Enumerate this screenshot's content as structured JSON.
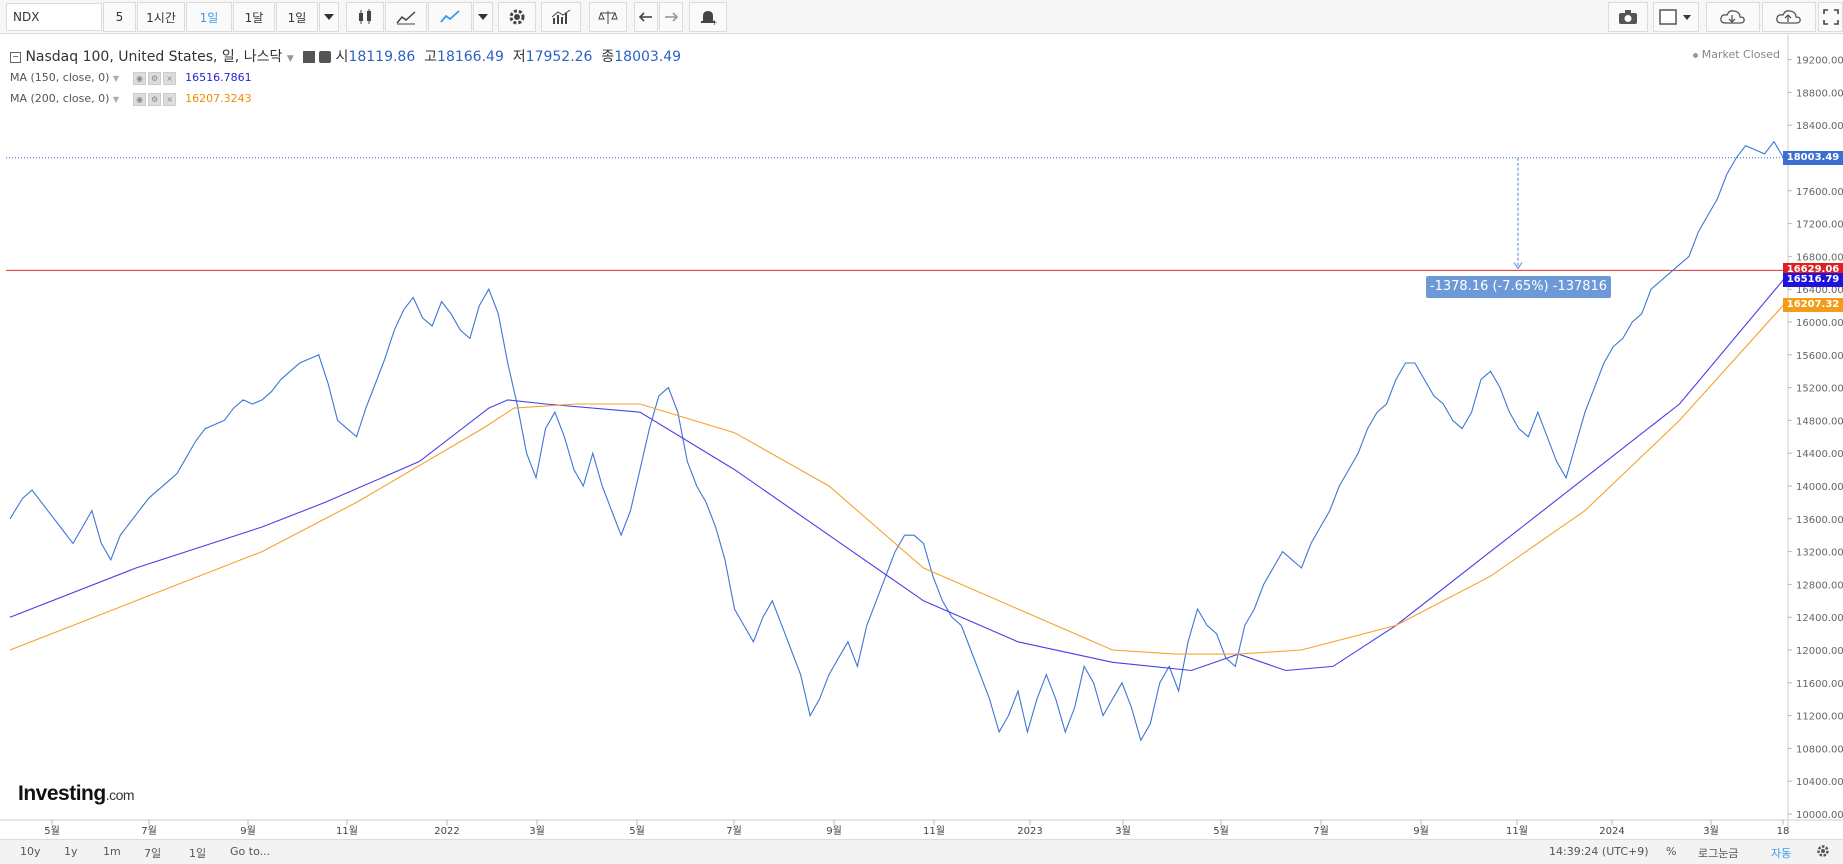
{
  "toolbar": {
    "symbol": "NDX",
    "buttons": [
      "5",
      "1시간",
      "1일",
      "1달",
      "1일"
    ],
    "active_button": "1일"
  },
  "legend": {
    "title": "Nasdaq 100, United States, 일, 나스닥",
    "open_label": "시",
    "open": "18119.86",
    "high_label": "고",
    "high": "18166.49",
    "low_label": "저",
    "low": "17952.26",
    "close_label": "종",
    "close": "18003.49",
    "ma150_label": "MA (150, close, 0)",
    "ma150_value": "16516.7861",
    "ma200_label": "MA (200, close, 0)",
    "ma200_value": "16207.3243",
    "market_status": "Market Closed"
  },
  "price_labels": {
    "last": "18003.49",
    "hline": "16629.06",
    "ma150": "16516.79",
    "ma200": "16207.32"
  },
  "measurement": "-1378.16 (-7.65%) -137816",
  "logo": {
    "main": "Investing",
    "sub": ".com"
  },
  "bottombar": {
    "ranges": [
      "10y",
      "1y",
      "1m",
      "7일",
      "1일",
      "Go to..."
    ],
    "time": "14:39:24 (UTC+9)",
    "percent": "%",
    "log": "로그눈금",
    "auto": "자동"
  },
  "colors": {
    "price": "#3d76d6",
    "ma150": "#4b3ee8",
    "ma200": "#f4a22d",
    "hline": "#e03131",
    "last_box": "#3d6fd3",
    "hline_box": "#e02020",
    "ma150_box": "#1f12dc",
    "ma200_box": "#f39c1a"
  },
  "chart_data": {
    "type": "line",
    "x_tick_labels": [
      "5월",
      "7월",
      "9월",
      "11월",
      "2022",
      "3월",
      "5월",
      "7월",
      "9월",
      "11월",
      "2023",
      "3월",
      "5월",
      "7월",
      "9월",
      "11월",
      "2024",
      "3월",
      "18"
    ],
    "y_tick_labels": [
      "10000.00",
      "10400.00",
      "10800.00",
      "11200.00",
      "11600.00",
      "12000.00",
      "12400.00",
      "12800.00",
      "13200.00",
      "13600.00",
      "14000.00",
      "14400.00",
      "14800.00",
      "15200.00",
      "15600.00",
      "16000.00",
      "16400.00",
      "16800.00",
      "17200.00",
      "17600.00",
      "18000.00",
      "18400.00",
      "18800.00",
      "19200.00"
    ],
    "ylim": [
      10000,
      19300
    ],
    "horizontal_line": 16629.06,
    "last_price": 18003.49,
    "series": [
      {
        "name": "Nasdaq 100",
        "points": [
          [
            0,
            13600
          ],
          [
            4,
            13850
          ],
          [
            7,
            13950
          ],
          [
            10,
            13800
          ],
          [
            13,
            13650
          ],
          [
            16,
            13500
          ],
          [
            20,
            13300
          ],
          [
            23,
            13500
          ],
          [
            26,
            13700
          ],
          [
            29,
            13300
          ],
          [
            32,
            13100
          ],
          [
            35,
            13400
          ],
          [
            38,
            13550
          ],
          [
            41,
            13700
          ],
          [
            44,
            13850
          ],
          [
            47,
            13950
          ],
          [
            50,
            14050
          ],
          [
            53,
            14150
          ],
          [
            56,
            14350
          ],
          [
            59,
            14550
          ],
          [
            62,
            14700
          ],
          [
            65,
            14750
          ],
          [
            68,
            14800
          ],
          [
            71,
            14950
          ],
          [
            74,
            15050
          ],
          [
            77,
            15000
          ],
          [
            80,
            15050
          ],
          [
            83,
            15150
          ],
          [
            86,
            15300
          ],
          [
            89,
            15400
          ],
          [
            92,
            15500
          ],
          [
            95,
            15550
          ],
          [
            98,
            15600
          ],
          [
            101,
            15250
          ],
          [
            104,
            14800
          ],
          [
            107,
            14700
          ],
          [
            110,
            14600
          ],
          [
            113,
            14950
          ],
          [
            116,
            15250
          ],
          [
            119,
            15550
          ],
          [
            122,
            15900
          ],
          [
            125,
            16150
          ],
          [
            128,
            16300
          ],
          [
            131,
            16050
          ],
          [
            134,
            15950
          ],
          [
            137,
            16250
          ],
          [
            140,
            16100
          ],
          [
            143,
            15900
          ],
          [
            146,
            15800
          ],
          [
            149,
            16200
          ],
          [
            152,
            16400
          ],
          [
            155,
            16100
          ],
          [
            158,
            15500
          ],
          [
            161,
            15000
          ],
          [
            164,
            14400
          ],
          [
            167,
            14100
          ],
          [
            170,
            14700
          ],
          [
            173,
            14900
          ],
          [
            176,
            14600
          ],
          [
            179,
            14200
          ],
          [
            182,
            14000
          ],
          [
            185,
            14400
          ],
          [
            188,
            14000
          ],
          [
            191,
            13700
          ],
          [
            194,
            13400
          ],
          [
            197,
            13700
          ],
          [
            200,
            14200
          ],
          [
            203,
            14700
          ],
          [
            206,
            15100
          ],
          [
            209,
            15200
          ],
          [
            212,
            14900
          ],
          [
            215,
            14300
          ],
          [
            218,
            14000
          ],
          [
            221,
            13800
          ],
          [
            224,
            13500
          ],
          [
            227,
            13100
          ],
          [
            230,
            12500
          ],
          [
            233,
            12300
          ],
          [
            236,
            12100
          ],
          [
            239,
            12400
          ],
          [
            242,
            12600
          ],
          [
            245,
            12300
          ],
          [
            248,
            12000
          ],
          [
            251,
            11700
          ],
          [
            254,
            11200
          ],
          [
            257,
            11400
          ],
          [
            260,
            11700
          ],
          [
            263,
            11900
          ],
          [
            266,
            12100
          ],
          [
            269,
            11800
          ],
          [
            272,
            12300
          ],
          [
            275,
            12600
          ],
          [
            278,
            12900
          ],
          [
            281,
            13200
          ],
          [
            284,
            13400
          ],
          [
            287,
            13400
          ],
          [
            290,
            13300
          ],
          [
            293,
            12900
          ],
          [
            296,
            12600
          ],
          [
            299,
            12400
          ],
          [
            302,
            12300
          ],
          [
            305,
            12000
          ],
          [
            308,
            11700
          ],
          [
            311,
            11400
          ],
          [
            314,
            11000
          ],
          [
            317,
            11200
          ],
          [
            320,
            11500
          ],
          [
            323,
            11000
          ],
          [
            326,
            11400
          ],
          [
            329,
            11700
          ],
          [
            332,
            11400
          ],
          [
            335,
            11000
          ],
          [
            338,
            11300
          ],
          [
            341,
            11800
          ],
          [
            344,
            11600
          ],
          [
            347,
            11200
          ],
          [
            350,
            11400
          ],
          [
            353,
            11600
          ],
          [
            356,
            11300
          ],
          [
            359,
            10900
          ],
          [
            362,
            11100
          ],
          [
            365,
            11600
          ],
          [
            368,
            11800
          ],
          [
            371,
            11500
          ],
          [
            374,
            12100
          ],
          [
            377,
            12500
          ],
          [
            380,
            12300
          ],
          [
            383,
            12200
          ],
          [
            386,
            11900
          ],
          [
            389,
            11800
          ],
          [
            392,
            12300
          ],
          [
            395,
            12500
          ],
          [
            398,
            12800
          ],
          [
            401,
            13000
          ],
          [
            404,
            13200
          ],
          [
            407,
            13100
          ],
          [
            410,
            13000
          ],
          [
            413,
            13300
          ],
          [
            416,
            13500
          ],
          [
            419,
            13700
          ],
          [
            422,
            14000
          ],
          [
            425,
            14200
          ],
          [
            428,
            14400
          ],
          [
            431,
            14700
          ],
          [
            434,
            14900
          ],
          [
            437,
            15000
          ],
          [
            440,
            15300
          ],
          [
            443,
            15500
          ],
          [
            446,
            15500
          ],
          [
            449,
            15300
          ],
          [
            452,
            15100
          ],
          [
            455,
            15000
          ],
          [
            458,
            14800
          ],
          [
            461,
            14700
          ],
          [
            464,
            14900
          ],
          [
            467,
            15300
          ],
          [
            470,
            15400
          ],
          [
            473,
            15200
          ],
          [
            476,
            14900
          ],
          [
            479,
            14700
          ],
          [
            482,
            14600
          ],
          [
            485,
            14900
          ],
          [
            488,
            14600
          ],
          [
            491,
            14300
          ],
          [
            494,
            14100
          ],
          [
            497,
            14500
          ],
          [
            500,
            14900
          ],
          [
            503,
            15200
          ],
          [
            506,
            15500
          ],
          [
            509,
            15700
          ],
          [
            512,
            15800
          ],
          [
            515,
            16000
          ],
          [
            518,
            16100
          ],
          [
            521,
            16400
          ],
          [
            524,
            16500
          ],
          [
            527,
            16600
          ],
          [
            530,
            16700
          ],
          [
            533,
            16800
          ],
          [
            536,
            17100
          ],
          [
            539,
            17300
          ],
          [
            542,
            17500
          ],
          [
            545,
            17800
          ],
          [
            548,
            18000
          ],
          [
            551,
            18150
          ],
          [
            554,
            18100
          ],
          [
            557,
            18050
          ],
          [
            560,
            18200
          ],
          [
            563,
            18000
          ]
        ]
      },
      {
        "name": "MA (150, close, 0)",
        "points": [
          [
            0,
            12400
          ],
          [
            40,
            13000
          ],
          [
            80,
            13500
          ],
          [
            100,
            13800
          ],
          [
            130,
            14300
          ],
          [
            152,
            14950
          ],
          [
            158,
            15050
          ],
          [
            170,
            15000
          ],
          [
            200,
            14900
          ],
          [
            230,
            14200
          ],
          [
            260,
            13400
          ],
          [
            290,
            12600
          ],
          [
            320,
            12100
          ],
          [
            350,
            11850
          ],
          [
            375,
            11750
          ],
          [
            390,
            11950
          ],
          [
            405,
            11750
          ],
          [
            420,
            11800
          ],
          [
            440,
            12300
          ],
          [
            470,
            13200
          ],
          [
            500,
            14100
          ],
          [
            530,
            15000
          ],
          [
            563,
            16516.79
          ]
        ]
      },
      {
        "name": "MA (200, close, 0)",
        "points": [
          [
            0,
            12000
          ],
          [
            40,
            12600
          ],
          [
            80,
            13200
          ],
          [
            110,
            13800
          ],
          [
            150,
            14700
          ],
          [
            160,
            14950
          ],
          [
            180,
            15000
          ],
          [
            200,
            15000
          ],
          [
            230,
            14650
          ],
          [
            260,
            14000
          ],
          [
            290,
            13000
          ],
          [
            320,
            12500
          ],
          [
            350,
            12000
          ],
          [
            370,
            11950
          ],
          [
            390,
            11950
          ],
          [
            410,
            12000
          ],
          [
            440,
            12300
          ],
          [
            470,
            12900
          ],
          [
            500,
            13700
          ],
          [
            530,
            14800
          ],
          [
            563,
            16207.32
          ]
        ]
      }
    ]
  }
}
